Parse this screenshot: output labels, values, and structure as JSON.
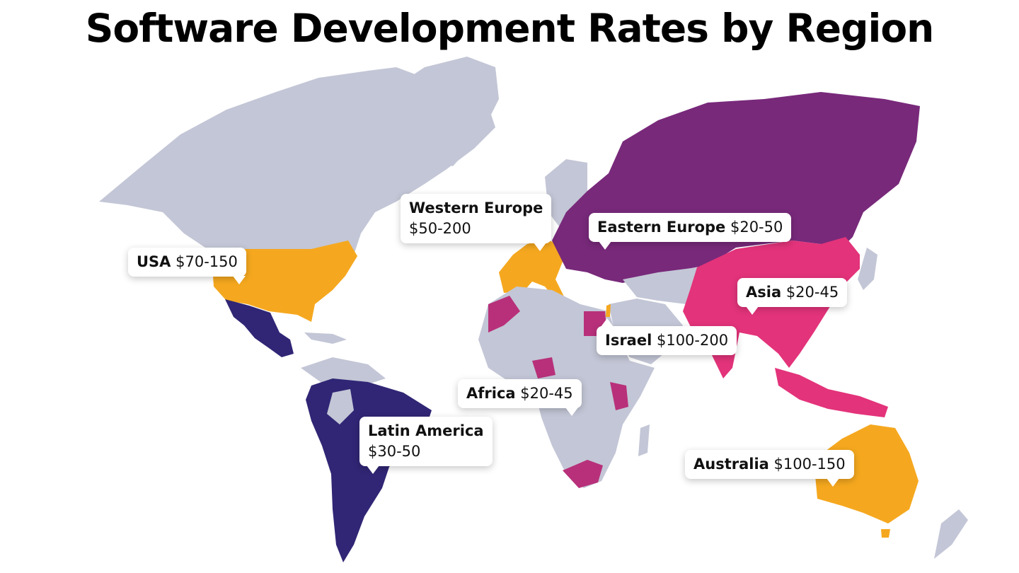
{
  "title": "Software Development Rates by Region",
  "colors": {
    "land": "#c3c6d6",
    "usa_australia_we": "#f5a81f",
    "eastern_europe": "#78297a",
    "asia": "#e3337a",
    "africa_israel": "#b8307a",
    "latin_america": "#302675"
  },
  "regions": [
    {
      "id": "usa",
      "name": "USA",
      "rate": "$70-150",
      "color": "#f5a81f"
    },
    {
      "id": "western-europe",
      "name": "Western Europe",
      "rate": "$50-200",
      "color": "#f5a81f"
    },
    {
      "id": "eastern-europe",
      "name": "Eastern Europe",
      "rate": "$20-50",
      "color": "#78297a"
    },
    {
      "id": "asia",
      "name": "Asia",
      "rate": "$20-45",
      "color": "#e3337a"
    },
    {
      "id": "israel",
      "name": "Israel",
      "rate": "$100-200",
      "color": "#b8307a"
    },
    {
      "id": "africa",
      "name": "Africa",
      "rate": "$20-45",
      "color": "#b8307a"
    },
    {
      "id": "latin-america",
      "name": "Latin America",
      "rate": "$30-50",
      "color": "#302675"
    },
    {
      "id": "australia",
      "name": "Australia",
      "rate": "$100-150",
      "color": "#f5a81f"
    }
  ]
}
